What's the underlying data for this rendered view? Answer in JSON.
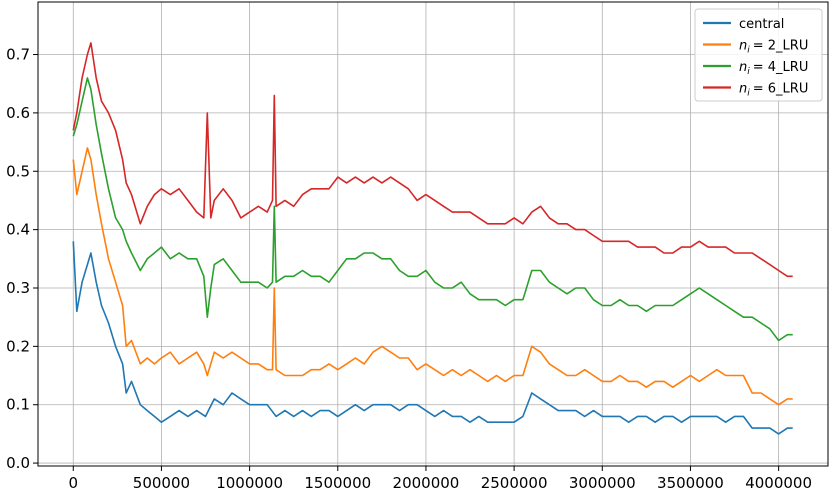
{
  "chart_data": {
    "type": "line",
    "title": "",
    "xlabel": "",
    "ylabel": "",
    "xlim": [
      -200000,
      4280000
    ],
    "ylim": [
      -0.005,
      0.79
    ],
    "x_ticks": [
      0,
      500000,
      1000000,
      1500000,
      2000000,
      2500000,
      3000000,
      3500000,
      4000000
    ],
    "x_tick_labels": [
      "0",
      "500000",
      "1000000",
      "1500000",
      "2000000",
      "2500000",
      "3000000",
      "3500000",
      "4000000"
    ],
    "y_ticks": [
      0.0,
      0.1,
      0.2,
      0.3,
      0.4,
      0.5,
      0.6,
      0.7
    ],
    "y_tick_labels": [
      "0.0",
      "0.1",
      "0.2",
      "0.3",
      "0.4",
      "0.5",
      "0.6",
      "0.7"
    ],
    "grid": true,
    "legend_position": "top-right",
    "series": [
      {
        "name": "central",
        "legend_label": "central",
        "color": "#1f77b4",
        "x": [
          0,
          20000,
          50000,
          80000,
          100000,
          130000,
          160000,
          200000,
          240000,
          280000,
          300000,
          330000,
          380000,
          420000,
          460000,
          500000,
          550000,
          600000,
          650000,
          700000,
          750000,
          800000,
          850000,
          900000,
          950000,
          1000000,
          1050000,
          1100000,
          1150000,
          1200000,
          1250000,
          1300000,
          1350000,
          1400000,
          1450000,
          1500000,
          1550000,
          1600000,
          1650000,
          1700000,
          1750000,
          1800000,
          1850000,
          1900000,
          1950000,
          2000000,
          2050000,
          2100000,
          2150000,
          2200000,
          2250000,
          2300000,
          2350000,
          2400000,
          2450000,
          2500000,
          2550000,
          2600000,
          2650000,
          2700000,
          2750000,
          2800000,
          2850000,
          2900000,
          2950000,
          3000000,
          3050000,
          3100000,
          3150000,
          3200000,
          3250000,
          3300000,
          3350000,
          3400000,
          3450000,
          3500000,
          3550000,
          3600000,
          3650000,
          3700000,
          3750000,
          3800000,
          3850000,
          3900000,
          3950000,
          4000000,
          4050000,
          4080000
        ],
        "y": [
          0.38,
          0.26,
          0.31,
          0.34,
          0.36,
          0.31,
          0.27,
          0.24,
          0.2,
          0.17,
          0.12,
          0.14,
          0.1,
          0.09,
          0.08,
          0.07,
          0.08,
          0.09,
          0.08,
          0.09,
          0.08,
          0.11,
          0.1,
          0.12,
          0.11,
          0.1,
          0.1,
          0.1,
          0.08,
          0.09,
          0.08,
          0.09,
          0.08,
          0.09,
          0.09,
          0.08,
          0.09,
          0.1,
          0.09,
          0.1,
          0.1,
          0.1,
          0.09,
          0.1,
          0.1,
          0.09,
          0.08,
          0.09,
          0.08,
          0.08,
          0.07,
          0.08,
          0.07,
          0.07,
          0.07,
          0.07,
          0.08,
          0.12,
          0.11,
          0.1,
          0.09,
          0.09,
          0.09,
          0.08,
          0.09,
          0.08,
          0.08,
          0.08,
          0.07,
          0.08,
          0.08,
          0.07,
          0.08,
          0.08,
          0.07,
          0.08,
          0.08,
          0.08,
          0.08,
          0.07,
          0.08,
          0.08,
          0.06,
          0.06,
          0.06,
          0.05,
          0.06,
          0.06
        ]
      },
      {
        "name": "n_i = 2_LRU",
        "legend_label": "= 2_LRU",
        "color": "#ff7f0e",
        "x": [
          0,
          20000,
          50000,
          80000,
          100000,
          130000,
          160000,
          200000,
          240000,
          280000,
          300000,
          330000,
          380000,
          420000,
          460000,
          500000,
          550000,
          600000,
          650000,
          700000,
          740000,
          760000,
          780000,
          800000,
          850000,
          900000,
          950000,
          1000000,
          1050000,
          1100000,
          1130000,
          1140000,
          1150000,
          1200000,
          1250000,
          1300000,
          1350000,
          1400000,
          1450000,
          1500000,
          1550000,
          1600000,
          1650000,
          1700000,
          1750000,
          1800000,
          1850000,
          1900000,
          1950000,
          2000000,
          2050000,
          2100000,
          2150000,
          2200000,
          2250000,
          2300000,
          2350000,
          2400000,
          2450000,
          2500000,
          2550000,
          2600000,
          2650000,
          2700000,
          2750000,
          2800000,
          2850000,
          2900000,
          2950000,
          3000000,
          3050000,
          3100000,
          3150000,
          3200000,
          3250000,
          3300000,
          3350000,
          3400000,
          3450000,
          3500000,
          3550000,
          3600000,
          3650000,
          3700000,
          3750000,
          3800000,
          3850000,
          3900000,
          3950000,
          4000000,
          4050000,
          4080000
        ],
        "y": [
          0.52,
          0.46,
          0.5,
          0.54,
          0.52,
          0.46,
          0.41,
          0.35,
          0.31,
          0.27,
          0.2,
          0.21,
          0.17,
          0.18,
          0.17,
          0.18,
          0.19,
          0.17,
          0.18,
          0.19,
          0.17,
          0.15,
          0.17,
          0.19,
          0.18,
          0.19,
          0.18,
          0.17,
          0.17,
          0.16,
          0.16,
          0.3,
          0.16,
          0.15,
          0.15,
          0.15,
          0.16,
          0.16,
          0.17,
          0.16,
          0.17,
          0.18,
          0.17,
          0.19,
          0.2,
          0.19,
          0.18,
          0.18,
          0.16,
          0.17,
          0.16,
          0.15,
          0.16,
          0.15,
          0.16,
          0.15,
          0.14,
          0.15,
          0.14,
          0.15,
          0.15,
          0.2,
          0.19,
          0.17,
          0.16,
          0.15,
          0.15,
          0.16,
          0.15,
          0.14,
          0.14,
          0.15,
          0.14,
          0.14,
          0.13,
          0.14,
          0.14,
          0.13,
          0.14,
          0.15,
          0.14,
          0.15,
          0.16,
          0.15,
          0.15,
          0.15,
          0.12,
          0.12,
          0.11,
          0.1,
          0.11,
          0.11
        ]
      },
      {
        "name": "n_i = 4_LRU",
        "legend_label": "= 4_LRU",
        "color": "#2ca02c",
        "x": [
          0,
          20000,
          50000,
          80000,
          100000,
          130000,
          160000,
          200000,
          240000,
          280000,
          300000,
          330000,
          380000,
          420000,
          460000,
          500000,
          550000,
          600000,
          650000,
          700000,
          740000,
          760000,
          780000,
          800000,
          850000,
          900000,
          950000,
          1000000,
          1050000,
          1100000,
          1130000,
          1140000,
          1150000,
          1200000,
          1250000,
          1300000,
          1350000,
          1400000,
          1450000,
          1500000,
          1550000,
          1600000,
          1650000,
          1700000,
          1750000,
          1800000,
          1850000,
          1900000,
          1950000,
          2000000,
          2050000,
          2100000,
          2150000,
          2200000,
          2250000,
          2300000,
          2350000,
          2400000,
          2450000,
          2500000,
          2550000,
          2600000,
          2650000,
          2700000,
          2750000,
          2800000,
          2850000,
          2900000,
          2950000,
          3000000,
          3050000,
          3100000,
          3150000,
          3200000,
          3250000,
          3300000,
          3350000,
          3400000,
          3450000,
          3500000,
          3550000,
          3600000,
          3650000,
          3700000,
          3750000,
          3800000,
          3850000,
          3900000,
          3950000,
          4000000,
          4050000,
          4080000
        ],
        "y": [
          0.56,
          0.58,
          0.62,
          0.66,
          0.64,
          0.58,
          0.53,
          0.47,
          0.42,
          0.4,
          0.38,
          0.36,
          0.33,
          0.35,
          0.36,
          0.37,
          0.35,
          0.36,
          0.35,
          0.35,
          0.32,
          0.25,
          0.3,
          0.34,
          0.35,
          0.33,
          0.31,
          0.31,
          0.31,
          0.3,
          0.31,
          0.44,
          0.31,
          0.32,
          0.32,
          0.33,
          0.32,
          0.32,
          0.31,
          0.33,
          0.35,
          0.35,
          0.36,
          0.36,
          0.35,
          0.35,
          0.33,
          0.32,
          0.32,
          0.33,
          0.31,
          0.3,
          0.3,
          0.31,
          0.29,
          0.28,
          0.28,
          0.28,
          0.27,
          0.28,
          0.28,
          0.33,
          0.33,
          0.31,
          0.3,
          0.29,
          0.3,
          0.3,
          0.28,
          0.27,
          0.27,
          0.28,
          0.27,
          0.27,
          0.26,
          0.27,
          0.27,
          0.27,
          0.28,
          0.29,
          0.3,
          0.29,
          0.28,
          0.27,
          0.26,
          0.25,
          0.25,
          0.24,
          0.23,
          0.21,
          0.22,
          0.22
        ]
      },
      {
        "name": "n_i = 6_LRU",
        "legend_label": "= 6_LRU",
        "color": "#d62728",
        "x": [
          0,
          20000,
          50000,
          80000,
          100000,
          130000,
          160000,
          200000,
          240000,
          280000,
          300000,
          330000,
          380000,
          420000,
          460000,
          500000,
          550000,
          600000,
          650000,
          700000,
          740000,
          760000,
          780000,
          800000,
          850000,
          900000,
          950000,
          1000000,
          1050000,
          1100000,
          1130000,
          1140000,
          1150000,
          1200000,
          1250000,
          1300000,
          1350000,
          1400000,
          1450000,
          1500000,
          1550000,
          1600000,
          1650000,
          1700000,
          1750000,
          1800000,
          1850000,
          1900000,
          1950000,
          2000000,
          2050000,
          2100000,
          2150000,
          2200000,
          2250000,
          2300000,
          2350000,
          2400000,
          2450000,
          2500000,
          2550000,
          2600000,
          2650000,
          2700000,
          2750000,
          2800000,
          2850000,
          2900000,
          2950000,
          3000000,
          3050000,
          3100000,
          3150000,
          3200000,
          3250000,
          3300000,
          3350000,
          3400000,
          3450000,
          3500000,
          3550000,
          3600000,
          3650000,
          3700000,
          3750000,
          3800000,
          3850000,
          3900000,
          3950000,
          4000000,
          4050000,
          4080000
        ],
        "y": [
          0.57,
          0.6,
          0.66,
          0.7,
          0.72,
          0.66,
          0.62,
          0.6,
          0.57,
          0.52,
          0.48,
          0.46,
          0.41,
          0.44,
          0.46,
          0.47,
          0.46,
          0.47,
          0.45,
          0.43,
          0.42,
          0.6,
          0.42,
          0.45,
          0.47,
          0.45,
          0.42,
          0.43,
          0.44,
          0.43,
          0.45,
          0.63,
          0.44,
          0.45,
          0.44,
          0.46,
          0.47,
          0.47,
          0.47,
          0.49,
          0.48,
          0.49,
          0.48,
          0.49,
          0.48,
          0.49,
          0.48,
          0.47,
          0.45,
          0.46,
          0.45,
          0.44,
          0.43,
          0.43,
          0.43,
          0.42,
          0.41,
          0.41,
          0.41,
          0.42,
          0.41,
          0.43,
          0.44,
          0.42,
          0.41,
          0.41,
          0.4,
          0.4,
          0.39,
          0.38,
          0.38,
          0.38,
          0.38,
          0.37,
          0.37,
          0.37,
          0.36,
          0.36,
          0.37,
          0.37,
          0.38,
          0.37,
          0.37,
          0.37,
          0.36,
          0.36,
          0.36,
          0.35,
          0.34,
          0.33,
          0.32,
          0.32
        ]
      }
    ]
  }
}
